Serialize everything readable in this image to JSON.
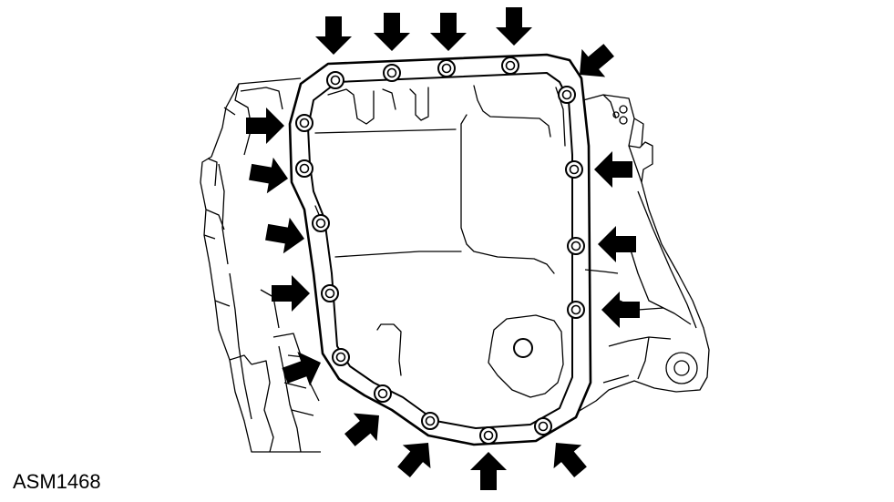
{
  "figure": {
    "code": "ASM1468",
    "line_color": "#000000",
    "arrow_color": "#000000",
    "background": "#ffffff",
    "bolt_count": 17,
    "arrow_count": 17,
    "bolt_icon": "bolt-icon",
    "arrow_icon": "arrow-icon"
  }
}
